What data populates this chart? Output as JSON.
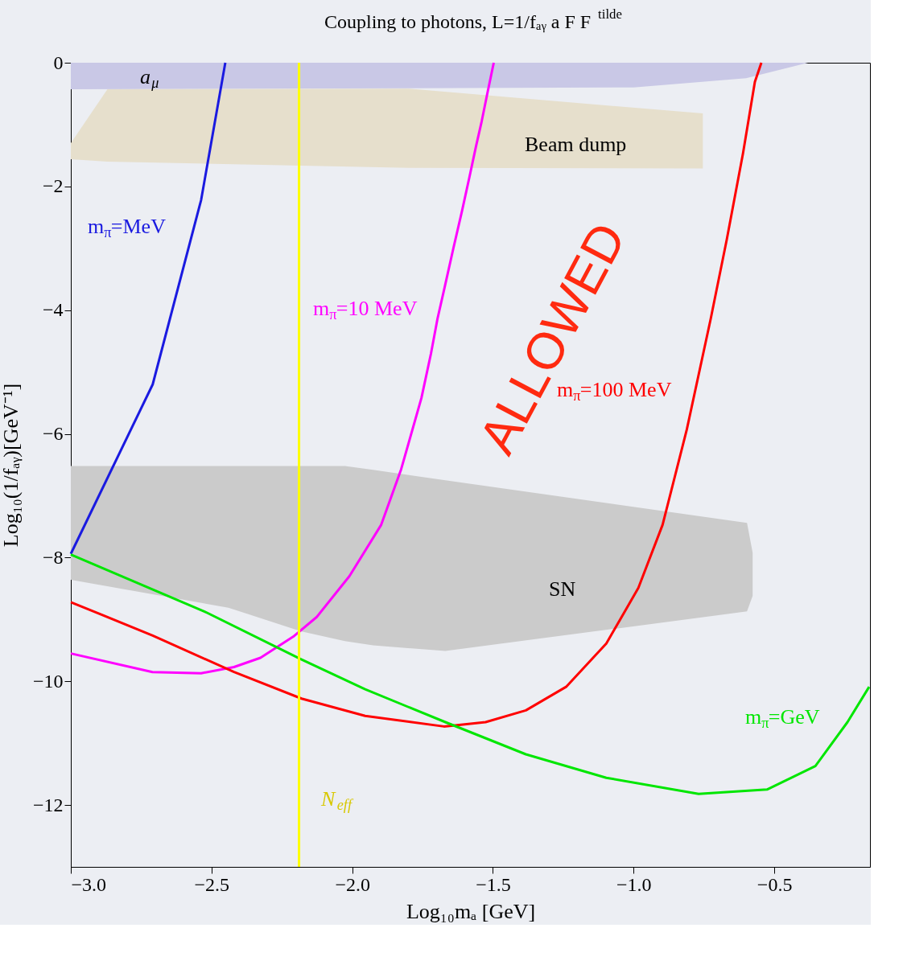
{
  "chart_data": {
    "type": "line",
    "title": "Coupling to photons, L=1/fₐᵧ a F F$^{tilde}$",
    "xlabel": "Log₁₀mₐ [GeV]",
    "ylabel": "Log₁₀(1/fₐᵧ)[GeV⁻¹]",
    "xlim": [
      -3.0,
      -0.16
    ],
    "ylim": [
      -13,
      0
    ],
    "xticks": [
      {
        "value": -3.0,
        "label": "−3.0"
      },
      {
        "value": -2.5,
        "label": "−2.5"
      },
      {
        "value": -2.0,
        "label": "−2.0"
      },
      {
        "value": -1.5,
        "label": "−1.5"
      },
      {
        "value": -1.0,
        "label": "−1.0"
      },
      {
        "value": -0.5,
        "label": "−0.5"
      }
    ],
    "yticks": [
      {
        "value": 0,
        "label": "0"
      },
      {
        "value": -2,
        "label": "−2"
      },
      {
        "value": -4,
        "label": "−4"
      },
      {
        "value": -6,
        "label": "−6"
      },
      {
        "value": -8,
        "label": "−8"
      },
      {
        "value": -10,
        "label": "−10"
      },
      {
        "value": -12,
        "label": "−12"
      }
    ],
    "grid": false,
    "series": [
      {
        "type": "area",
        "color": "#c9c8e6",
        "x": [
          -3.0,
          -1.0,
          -0.6,
          -0.38
        ],
        "values": [
          -0.43,
          -0.4,
          -0.25,
          0
        ]
      },
      {
        "type": "area",
        "color": "#e6dfcc",
        "x": [
          -3.0,
          -2.87,
          -1.8,
          -0.754
        ],
        "values": [
          null,
          null,
          null,
          null
        ],
        "upper": [
          -1.3,
          -0.43,
          -0.42,
          -0.82
        ],
        "lower": [
          -1.56,
          -1.6,
          -1.7,
          -1.71
        ]
      },
      {
        "type": "area",
        "color": "#cbcbcb",
        "x": [
          -3.0,
          -2.44,
          -2.183,
          -2.026,
          -1.926,
          -1.669,
          -0.597,
          -0.577
        ],
        "values": [
          null,
          null,
          null,
          null,
          null,
          null,
          null,
          null
        ],
        "upper": [
          -6.52,
          -6.52,
          -6.52,
          -6.52,
          -6.58,
          -6.75,
          -7.44,
          -7.92
        ],
        "lower": [
          -8.36,
          -8.81,
          -9.19,
          -9.35,
          -9.42,
          -9.51,
          -8.87,
          -8.62
        ]
      },
      {
        "name": "m$_{π}$=MeV",
        "color": "#1a1ae0",
        "x": [
          -3.0,
          -2.709,
          -2.537,
          -2.451
        ],
        "values": [
          -7.94,
          -5.2,
          -2.22,
          0
        ]
      },
      {
        "name": "m$_{π}$=10 MeV",
        "color": "#ff00ff",
        "x": [
          -3.0,
          -2.71,
          -2.537,
          -2.42,
          -2.326,
          -2.21,
          -2.126,
          -2.01,
          -1.897,
          -1.826,
          -1.754,
          -1.72,
          -1.697,
          -1.67,
          -1.64,
          -1.61,
          -1.583,
          -1.56,
          -1.54,
          -1.52,
          -1.497
        ],
        "values": [
          -9.55,
          -9.85,
          -9.87,
          -9.77,
          -9.62,
          -9.28,
          -8.96,
          -8.3,
          -7.47,
          -6.57,
          -5.42,
          -4.7,
          -4.14,
          -3.6,
          -2.99,
          -2.4,
          -1.84,
          -1.35,
          -0.95,
          -0.5,
          0
        ]
      },
      {
        "name": "m$_{π}$=100 MeV",
        "color": "#ff0000",
        "x": [
          -3.0,
          -2.709,
          -2.42,
          -2.18,
          -1.954,
          -1.674,
          -1.526,
          -1.383,
          -1.24,
          -1.097,
          -0.983,
          -0.897,
          -0.811,
          -0.726,
          -0.669,
          -0.611,
          -0.569,
          -0.546
        ],
        "values": [
          -8.72,
          -9.26,
          -9.85,
          -10.28,
          -10.56,
          -10.73,
          -10.66,
          -10.47,
          -10.09,
          -9.39,
          -8.49,
          -7.47,
          -5.93,
          -4.14,
          -2.86,
          -1.46,
          -0.31,
          0
        ]
      },
      {
        "name": "m$_{π}$=GeV",
        "color": "#00e600",
        "x": [
          -3.0,
          -2.526,
          -2.183,
          -1.954,
          -1.669,
          -1.383,
          -1.097,
          -0.769,
          -0.526,
          -0.354,
          -0.24,
          -0.163
        ],
        "values": [
          -7.95,
          -8.87,
          -9.64,
          -10.13,
          -10.66,
          -11.18,
          -11.56,
          -11.82,
          -11.75,
          -11.37,
          -10.66,
          -10.09
        ]
      }
    ],
    "ref_lines": [
      {
        "axis": "x",
        "value": -2.189,
        "label": "N$_{eff}$",
        "color": "#ffff00"
      }
    ],
    "annotations": [
      "ALLOWED",
      "Beam dump",
      "SN",
      "a$_{μ}$"
    ]
  }
}
